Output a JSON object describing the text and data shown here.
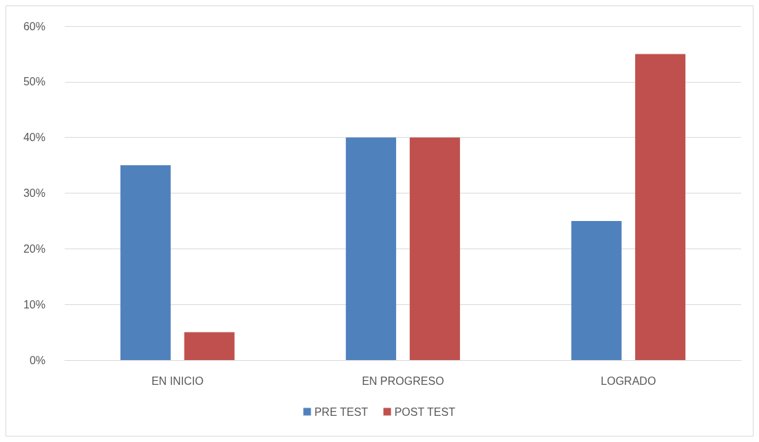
{
  "chart_data": {
    "type": "bar",
    "categories": [
      "EN INICIO",
      "EN PROGRESO",
      "LOGRADO"
    ],
    "series": [
      {
        "name": "PRE TEST",
        "color": "#4f81bd",
        "values": [
          35,
          40,
          25
        ]
      },
      {
        "name": "POST TEST",
        "color": "#c0504d",
        "values": [
          5,
          40,
          55
        ]
      }
    ],
    "ylim": [
      0,
      60
    ],
    "yticks": [
      {
        "value": 0,
        "label": "0%"
      },
      {
        "value": 10,
        "label": "10%"
      },
      {
        "value": 20,
        "label": "20%"
      },
      {
        "value": 30,
        "label": "30%"
      },
      {
        "value": 40,
        "label": "40%"
      },
      {
        "value": 50,
        "label": "50%"
      },
      {
        "value": 60,
        "label": "60%"
      }
    ],
    "grid": true,
    "legend": "bottom"
  }
}
